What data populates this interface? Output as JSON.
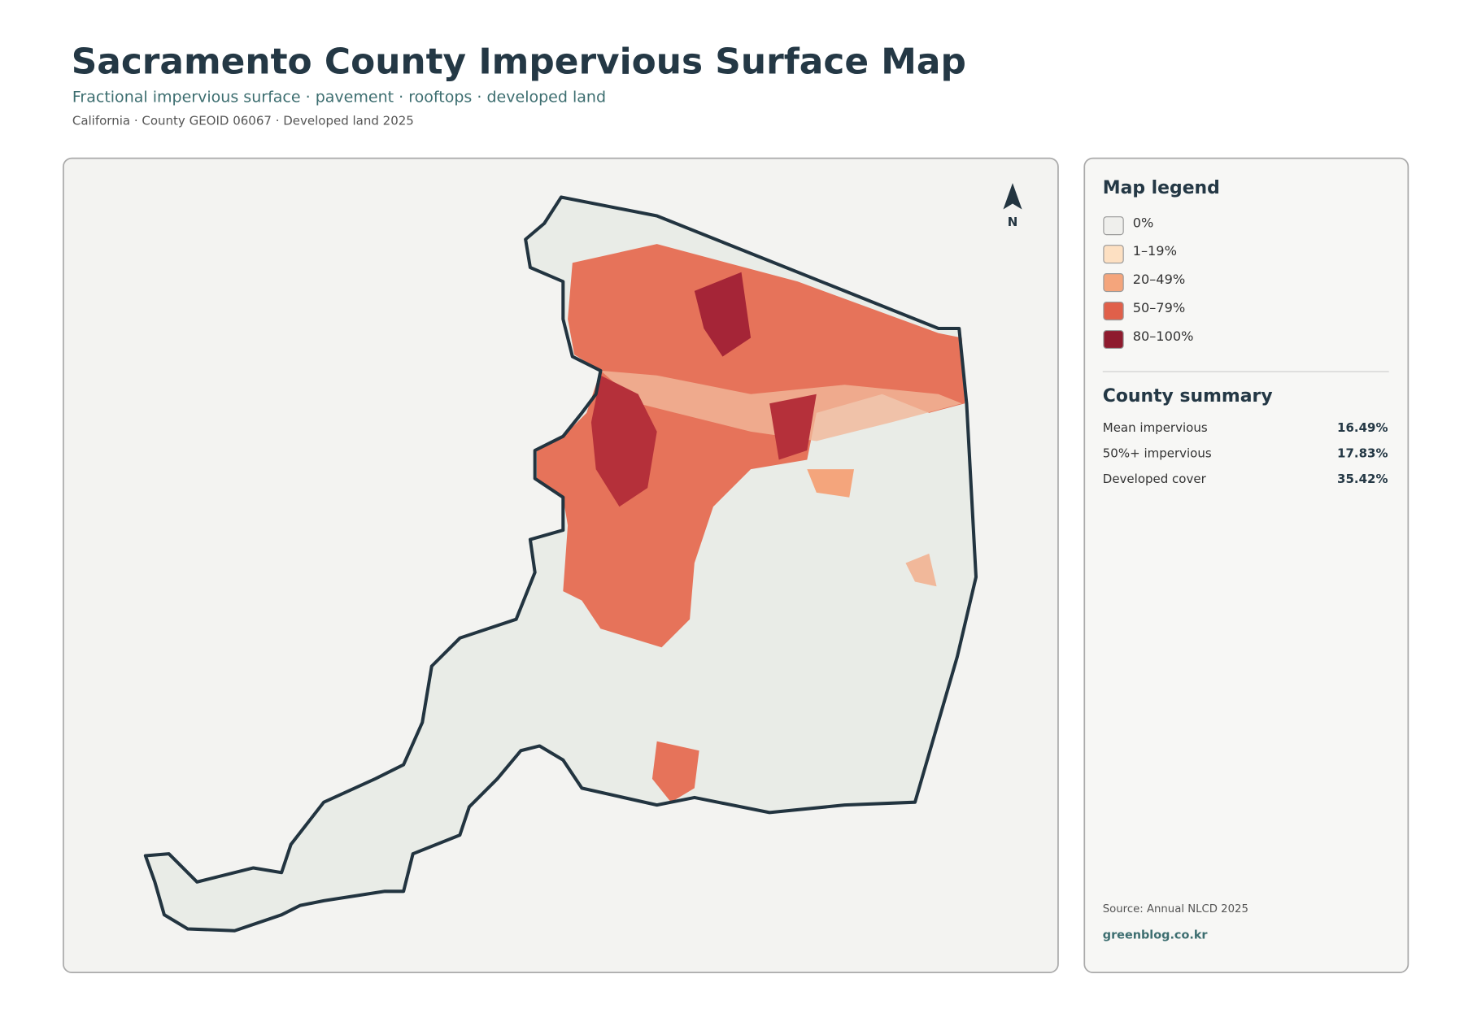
{
  "header": {
    "title": "Sacramento County Impervious Surface Map",
    "subtitle": "Fractional impervious surface · pavement · rooftops · developed land",
    "meta": "California · County GEOID 06067 · Developed land 2025"
  },
  "map": {
    "north_label": "N"
  },
  "legend": {
    "title": "Map legend",
    "items": [
      {
        "label": "0%",
        "color": "#efefec"
      },
      {
        "label": "1–19%",
        "color": "#fde0c2"
      },
      {
        "label": "20–49%",
        "color": "#f4a57c"
      },
      {
        "label": "50–79%",
        "color": "#e0604a"
      },
      {
        "label": "80–100%",
        "color": "#8e1b2e"
      }
    ]
  },
  "summary": {
    "title": "County summary",
    "rows": [
      {
        "label": "Mean impervious",
        "value": "16.49%"
      },
      {
        "label": "50%+ impervious",
        "value": "17.83%"
      },
      {
        "label": "Developed cover",
        "value": "35.42%"
      }
    ]
  },
  "footer": {
    "source": "Source: Annual NLCD 2025",
    "site": "greenblog.co.kr"
  }
}
